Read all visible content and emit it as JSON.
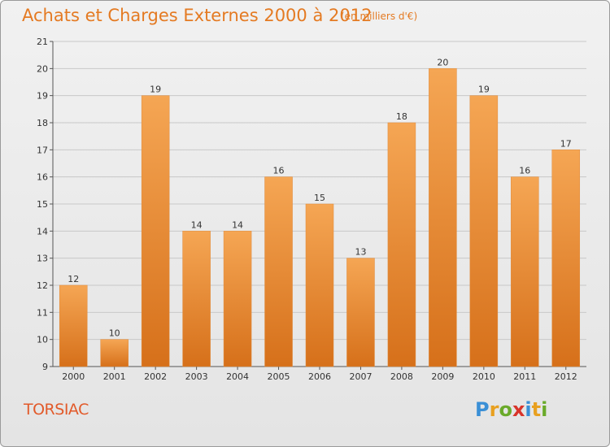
{
  "header": {
    "title": "Achats et Charges Externes 2000 à 2012",
    "subtitle": "(en milliers d'€)"
  },
  "footer": {
    "place": "TORSIAC",
    "logo_text": "Proxiti",
    "logo_letters": [
      {
        "ch": "P",
        "color": "#3a8fd6"
      },
      {
        "ch": "r",
        "color": "#e8a020"
      },
      {
        "ch": "o",
        "color": "#6aaa2a"
      },
      {
        "ch": "x",
        "color": "#d8342a"
      },
      {
        "ch": "i",
        "color": "#3a8fd6"
      },
      {
        "ch": "t",
        "color": "#e8a020"
      },
      {
        "ch": "i",
        "color": "#6aaa2a"
      }
    ]
  },
  "colors": {
    "title": "#e47a22",
    "bar_top": "#f5a654",
    "bar_bottom": "#d6701a",
    "grid": "#c8c8c8",
    "axis_text": "#333333",
    "place": "#e25a2a"
  },
  "chart_data": {
    "type": "bar",
    "categories": [
      "2000",
      "2001",
      "2002",
      "2003",
      "2004",
      "2005",
      "2006",
      "2007",
      "2008",
      "2009",
      "2010",
      "2011",
      "2012"
    ],
    "values": [
      12,
      10,
      19,
      14,
      14,
      16,
      15,
      13,
      18,
      20,
      19,
      16,
      17
    ],
    "ylim": [
      9,
      21
    ],
    "yticks": [
      9,
      10,
      11,
      12,
      13,
      14,
      15,
      16,
      17,
      18,
      19,
      20,
      21
    ],
    "grid": true,
    "data_labels": true
  }
}
